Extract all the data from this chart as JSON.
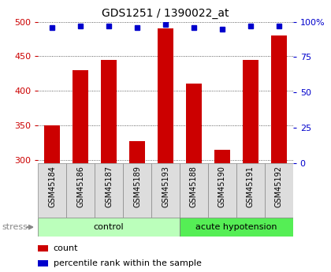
{
  "title": "GDS1251 / 1390022_at",
  "samples": [
    "GSM45184",
    "GSM45186",
    "GSM45187",
    "GSM45189",
    "GSM45193",
    "GSM45188",
    "GSM45190",
    "GSM45191",
    "GSM45192"
  ],
  "counts": [
    350,
    430,
    445,
    327,
    490,
    410,
    314,
    445,
    480
  ],
  "percentiles": [
    96,
    97,
    97,
    96,
    98,
    96,
    95,
    97,
    97
  ],
  "groups": [
    {
      "label": "control",
      "start": 0,
      "end": 5,
      "color": "#bbffbb"
    },
    {
      "label": "acute hypotension",
      "start": 5,
      "end": 9,
      "color": "#55ee55"
    }
  ],
  "ylim_left": [
    295,
    500
  ],
  "ylim_right": [
    0,
    100
  ],
  "yticks_left": [
    300,
    350,
    400,
    450,
    500
  ],
  "yticks_right": [
    0,
    25,
    50,
    75,
    100
  ],
  "bar_color": "#cc0000",
  "dot_color": "#0000cc",
  "bar_width": 0.55,
  "grid_color": "#333333",
  "tick_label_color_left": "#cc0000",
  "tick_label_color_right": "#0000cc",
  "sample_box_color": "#dddddd",
  "sample_box_edge": "#888888",
  "stress_color": "#888888",
  "stress_label": "stress",
  "legend_count": "count",
  "legend_percentile": "percentile rank within the sample",
  "fig_width": 4.2,
  "fig_height": 3.45,
  "dpi": 100
}
